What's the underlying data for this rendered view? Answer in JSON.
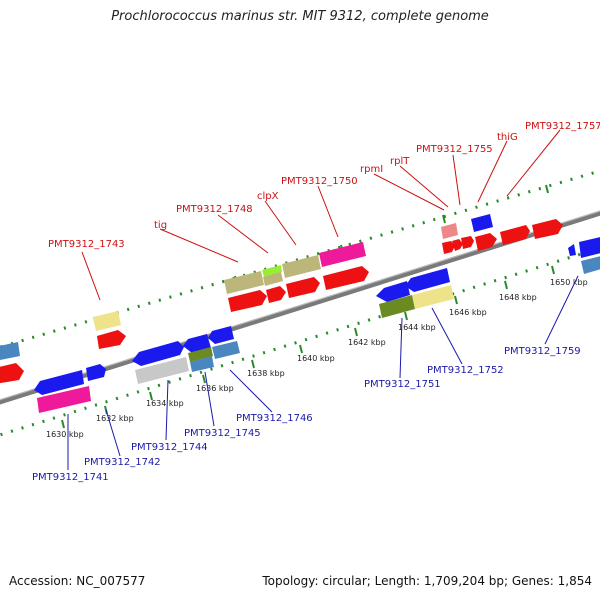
{
  "title": "Prochlorococcus marinus str. MIT 9312, complete genome",
  "footer": {
    "accession": "Accession: NC_007577",
    "summary": "Topology: circular; Length: 1,709,204 bp; Genes: 1,854"
  },
  "colors": {
    "cds_forward": "#ee1111",
    "cds_reverse": "#1a1aee",
    "forward_label": "#cc1111",
    "reverse_label": "#1a1aaa",
    "backbone": "#888888",
    "tick": "#2a8a2a"
  },
  "kbp_labels": [
    "1630 kbp",
    "1632 kbp",
    "1634 kbp",
    "1636 kbp",
    "1638 kbp",
    "1640 kbp",
    "1642 kbp",
    "1644 kbp",
    "1646 kbp",
    "1648 kbp",
    "1650 kbp"
  ],
  "forward_genes": [
    "PMT9312_1743",
    "tig",
    "PMT9312_1748",
    "clpX",
    "PMT9312_1750",
    "rpmI",
    "rplT",
    "PMT9312_1755",
    "thiG",
    "PMT9312_1757"
  ],
  "reverse_genes": [
    "PMT9312_1741",
    "PMT9312_1742",
    "PMT9312_1744",
    "PMT9312_1745",
    "PMT9312_1746",
    "PMT9312_1751",
    "PMT9312_1752",
    "PMT9312_1759"
  ]
}
